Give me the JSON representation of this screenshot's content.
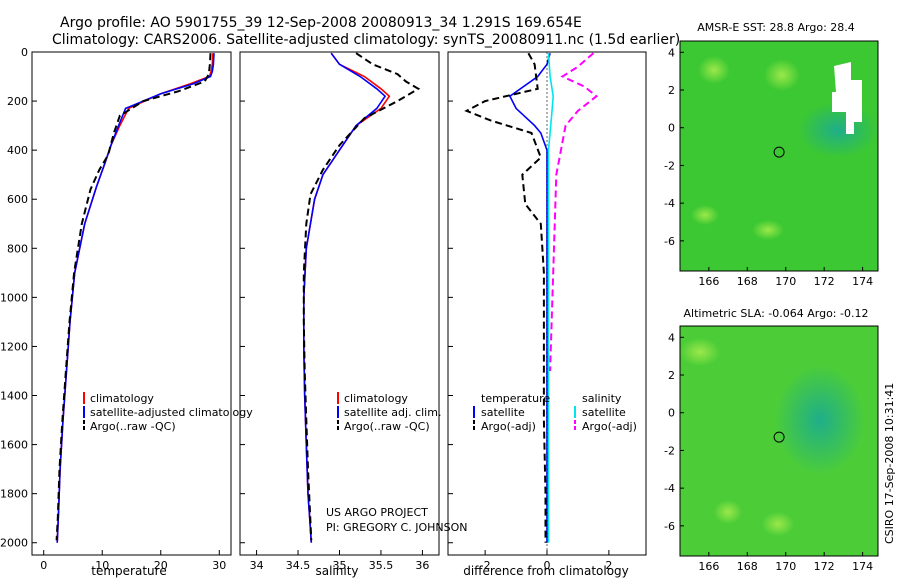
{
  "title_line1": "Argo profile: AO 5901755_39 12-Sep-2008 20080913_34 1.291S 169.654E",
  "title_line2": "Climatology: CARS2006. Satellite-adjusted climatology: synTS_20080911.nc (1.5d earlier)",
  "side_label": "CSIRO 17-Sep-2008 10:31:41",
  "credit_line1": "US ARGO PROJECT",
  "credit_line2": "PI: GREGORY C. JOHNSON",
  "colors": {
    "climatology": "#ff0000",
    "satellite": "#0000ff",
    "argo": "#000000",
    "sat_salinity": "#00e5ee",
    "argo_adj_salinity": "#ff00ff"
  },
  "chart_data": [
    {
      "id": "temperature",
      "type": "line",
      "xlabel": "temperature",
      "xlim": [
        -2,
        32
      ],
      "ylim": [
        2050,
        0
      ],
      "xticks": [
        0,
        10,
        20,
        30
      ],
      "yticks": [
        0,
        200,
        400,
        600,
        800,
        1000,
        1200,
        1400,
        1600,
        1800,
        2000
      ],
      "legend": [
        "climatology",
        "satellite-adjusted climatology",
        "Argo(..raw -QC)"
      ],
      "series": [
        {
          "name": "climatology",
          "color": "#ff0000",
          "dash": "",
          "x": [
            28.9,
            28.8,
            28.6,
            28.3,
            25,
            20,
            14.5,
            13,
            11.5,
            10.5,
            9,
            7,
            5.3,
            4.5,
            3.9,
            3.3,
            2.8,
            2.5,
            2.3
          ],
          "y": [
            5,
            50,
            80,
            100,
            130,
            170,
            230,
            300,
            380,
            450,
            550,
            700,
            900,
            1100,
            1300,
            1500,
            1700,
            1900,
            2000
          ]
        },
        {
          "name": "satellite-adjusted climatology",
          "color": "#0000ff",
          "dash": "",
          "x": [
            29.1,
            29,
            28.8,
            28.5,
            25.5,
            20,
            14,
            12.8,
            11.5,
            10.5,
            9,
            7,
            5.3,
            4.5,
            3.9,
            3.3,
            2.8,
            2.5,
            2.3
          ],
          "y": [
            5,
            50,
            80,
            100,
            130,
            170,
            230,
            300,
            380,
            450,
            550,
            700,
            900,
            1100,
            1300,
            1500,
            1700,
            1900,
            2000
          ]
        },
        {
          "name": "Argo(..raw -QC)",
          "color": "#000000",
          "dash": "7,4",
          "x": [
            28.5,
            28.4,
            28.2,
            27.5,
            23,
            17,
            13,
            12,
            11,
            9.5,
            8,
            6.5,
            5.2,
            4.4,
            3.8,
            3.2,
            2.7,
            2.4,
            2.2
          ],
          "y": [
            5,
            50,
            90,
            120,
            160,
            200,
            260,
            330,
            420,
            480,
            560,
            700,
            900,
            1100,
            1300,
            1500,
            1700,
            1900,
            1990
          ]
        }
      ]
    },
    {
      "id": "salinity",
      "type": "line",
      "xlabel": "salinity",
      "xlim": [
        33.8,
        36.2
      ],
      "ylim": [
        2050,
        0
      ],
      "xticks": [
        34,
        34.5,
        35,
        35.5,
        36
      ],
      "legend": [
        "climatology",
        "satellite adj. clim.",
        "Argo(..raw -QC)"
      ],
      "series": [
        {
          "name": "climatology",
          "color": "#ff0000",
          "dash": "",
          "x": [
            34.9,
            35,
            35.3,
            35.5,
            35.6,
            35.5,
            35.2,
            35,
            34.8,
            34.7,
            34.6,
            34.57,
            34.57,
            34.58,
            34.6,
            34.62,
            34.64,
            34.66
          ],
          "y": [
            5,
            50,
            100,
            150,
            180,
            230,
            300,
            400,
            500,
            600,
            800,
            1000,
            1200,
            1400,
            1600,
            1800,
            1900,
            2000
          ]
        },
        {
          "name": "satellite adj. clim.",
          "color": "#0000ff",
          "dash": "",
          "x": [
            34.9,
            35,
            35.25,
            35.45,
            35.55,
            35.45,
            35.2,
            35,
            34.8,
            34.7,
            34.6,
            34.57,
            34.57,
            34.58,
            34.6,
            34.62,
            34.64,
            34.66
          ],
          "y": [
            5,
            50,
            100,
            150,
            180,
            230,
            300,
            400,
            500,
            600,
            800,
            1000,
            1200,
            1400,
            1600,
            1800,
            1900,
            2000
          ]
        },
        {
          "name": "Argo(..raw -QC)",
          "color": "#000000",
          "dash": "7,4",
          "x": [
            35.2,
            35.4,
            35.7,
            35.8,
            35.95,
            35.7,
            35.3,
            35,
            34.8,
            34.65,
            34.6,
            34.57,
            34.57,
            34.58,
            34.6,
            34.62,
            34.64,
            34.66
          ],
          "y": [
            5,
            50,
            90,
            120,
            150,
            200,
            270,
            380,
            480,
            580,
            700,
            900,
            1100,
            1300,
            1500,
            1700,
            1850,
            1990
          ]
        }
      ]
    },
    {
      "id": "difference",
      "type": "line",
      "xlabel": "difference from climatology",
      "xlim": [
        -3.2,
        3.2
      ],
      "ylim": [
        2050,
        0
      ],
      "xticks": [
        -2,
        0,
        2
      ],
      "legend_temperature": [
        "temperature",
        "satellite",
        "Argo(-adj)"
      ],
      "legend_salinity": [
        "salinity",
        "satellite",
        "Argo(-adj)"
      ],
      "series": [
        {
          "name": "satellite",
          "group": "temperature",
          "color": "#0000ff",
          "dash": "",
          "x": [
            0.1,
            0.0,
            -0.3,
            -1.2,
            -1.0,
            -0.4,
            -0.2,
            0,
            0,
            0,
            0,
            0,
            0,
            0
          ],
          "y": [
            5,
            50,
            100,
            180,
            230,
            300,
            330,
            400,
            600,
            800,
            1200,
            1600,
            1800,
            2000
          ]
        },
        {
          "name": "Argo(-adj)",
          "group": "temperature",
          "color": "#000000",
          "dash": "7,4",
          "x": [
            -0.6,
            -0.4,
            -0.3,
            -2.0,
            -2.6,
            -1.8,
            -0.5,
            -0.2,
            -0.8,
            -0.7,
            -0.2,
            -0.1,
            -0.1,
            -0.1,
            -0.05,
            -0.05
          ],
          "y": [
            5,
            50,
            150,
            200,
            240,
            280,
            330,
            430,
            500,
            620,
            700,
            900,
            1200,
            1500,
            1800,
            2000
          ]
        },
        {
          "name": "satellite",
          "group": "salinity",
          "color": "#00e5ee",
          "dash": "",
          "x": [
            0.05,
            0.1,
            0.2,
            0.15,
            0.05,
            0.05,
            0.05,
            0.05,
            0.05
          ],
          "y": [
            5,
            100,
            180,
            260,
            400,
            800,
            1200,
            1600,
            2000
          ]
        },
        {
          "name": "Argo(-adj)",
          "group": "salinity",
          "color": "#ff00ff",
          "dash": "7,4",
          "x": [
            1.5,
            1.0,
            0.5,
            1.2,
            1.6,
            1.0,
            0.6,
            0.3,
            0.2,
            0.1,
            0.1
          ],
          "y": [
            5,
            60,
            100,
            140,
            180,
            240,
            300,
            500,
            900,
            1300,
            1300
          ]
        }
      ]
    },
    {
      "id": "sst_map",
      "type": "heatmap",
      "title": "AMSR-E SST: 28.8 Argo: 28.4",
      "xlim": [
        164.5,
        174.8
      ],
      "ylim": [
        -7.6,
        4.6
      ],
      "xticks": [
        166,
        168,
        170,
        172,
        174
      ],
      "yticks": [
        -6,
        -4,
        -2,
        0,
        2,
        4
      ],
      "marker": {
        "lon": 169.654,
        "lat": -1.291
      }
    },
    {
      "id": "sla_map",
      "type": "heatmap",
      "title": "Altimetric SLA: -0.064 Argo: -0.12",
      "xlim": [
        164.5,
        174.8
      ],
      "ylim": [
        -7.6,
        4.6
      ],
      "xticks": [
        166,
        168,
        170,
        172,
        174
      ],
      "yticks": [
        -6,
        -4,
        -2,
        0,
        2,
        4
      ],
      "marker": {
        "lon": 169.654,
        "lat": -1.291
      }
    }
  ]
}
